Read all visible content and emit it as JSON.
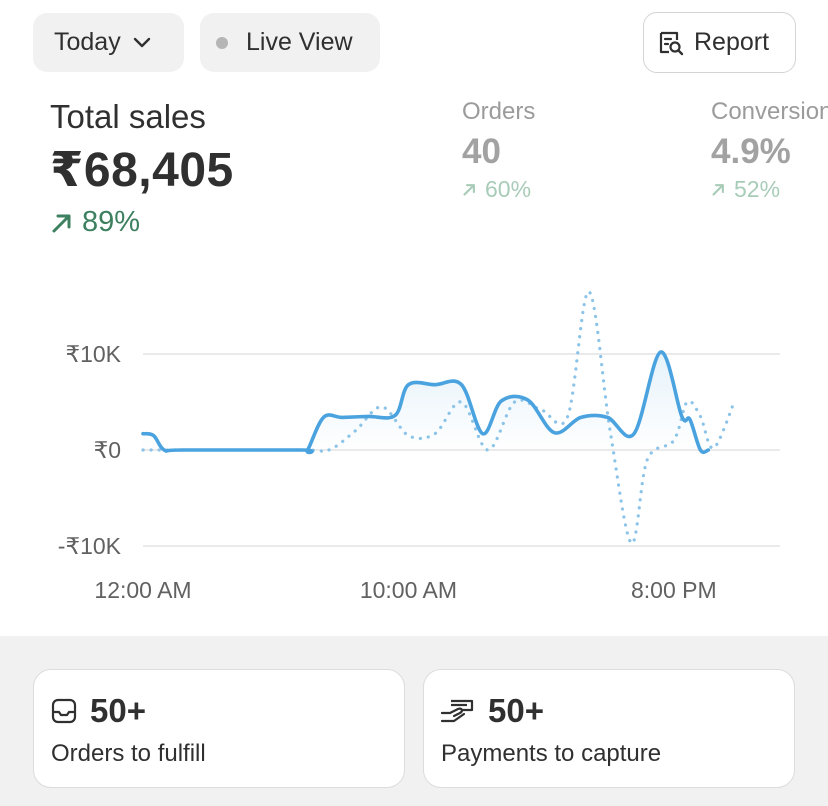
{
  "toolbar": {
    "date_filter_label": "Today",
    "live_view_label": "Live View",
    "report_label": "Report"
  },
  "metrics": {
    "total_sales": {
      "label": "Total sales",
      "value": "₹68,405",
      "change": "89%"
    },
    "orders": {
      "label": "Orders",
      "value": "40",
      "change": "60%"
    },
    "conversion": {
      "label": "Conversion",
      "value": "4.9%",
      "change": "52%"
    }
  },
  "colors": {
    "accent_line": "#4aa3df",
    "positive": "#3d8060",
    "positive_muted": "#a8ccb8",
    "muted_text": "#9b9b9b"
  },
  "chart_data": {
    "type": "line",
    "x_domain": [
      0,
      24
    ],
    "ylim": [
      -10000,
      10000
    ],
    "y_ticks": [
      {
        "value": 10000,
        "label": "₹10K"
      },
      {
        "value": 0,
        "label": "₹0"
      },
      {
        "value": -10000,
        "label": "-₹10K"
      }
    ],
    "x_ticks": [
      {
        "value": 0,
        "label": "12:00 AM"
      },
      {
        "value": 10,
        "label": "10:00 AM"
      },
      {
        "value": 20,
        "label": "8:00 PM"
      }
    ],
    "grid": true,
    "series": [
      {
        "style": "solid",
        "points": [
          [
            0,
            1700
          ],
          [
            0.4,
            1500
          ],
          [
            0.8,
            0
          ],
          [
            1.5,
            0
          ],
          [
            6,
            0
          ],
          [
            6.2,
            0
          ],
          [
            6.8,
            3400
          ],
          [
            7.5,
            3400
          ],
          [
            8.5,
            3500
          ],
          [
            9.5,
            3600
          ],
          [
            10,
            6800
          ],
          [
            11,
            6800
          ],
          [
            12,
            6800
          ],
          [
            12.8,
            1700
          ],
          [
            13.5,
            5100
          ],
          [
            14.5,
            5200
          ],
          [
            15.5,
            1800
          ],
          [
            16.5,
            3400
          ],
          [
            17.5,
            3400
          ],
          [
            18.5,
            1700
          ],
          [
            19.5,
            10200
          ],
          [
            20.3,
            3500
          ],
          [
            20.6,
            3200
          ],
          [
            21,
            0
          ],
          [
            21.3,
            0
          ]
        ]
      },
      {
        "style": "dotted",
        "points": [
          [
            0,
            0
          ],
          [
            1,
            0
          ],
          [
            6,
            0
          ],
          [
            7,
            0
          ],
          [
            8,
            2000
          ],
          [
            9,
            4500
          ],
          [
            10,
            1500
          ],
          [
            11,
            1700
          ],
          [
            12,
            5000
          ],
          [
            13,
            0
          ],
          [
            14,
            5000
          ],
          [
            15,
            4200
          ],
          [
            16,
            3500
          ],
          [
            16.8,
            16500
          ],
          [
            17.6,
            2000
          ],
          [
            18.4,
            -9700
          ],
          [
            19,
            -1000
          ],
          [
            20,
            1000
          ],
          [
            20.5,
            5000
          ],
          [
            21,
            3500
          ],
          [
            21.5,
            200
          ],
          [
            22.3,
            5200
          ]
        ]
      }
    ]
  },
  "cards": {
    "fulfill": {
      "count": "50+",
      "label": "Orders to fulfill"
    },
    "payments": {
      "count": "50+",
      "label": "Payments to capture"
    }
  }
}
